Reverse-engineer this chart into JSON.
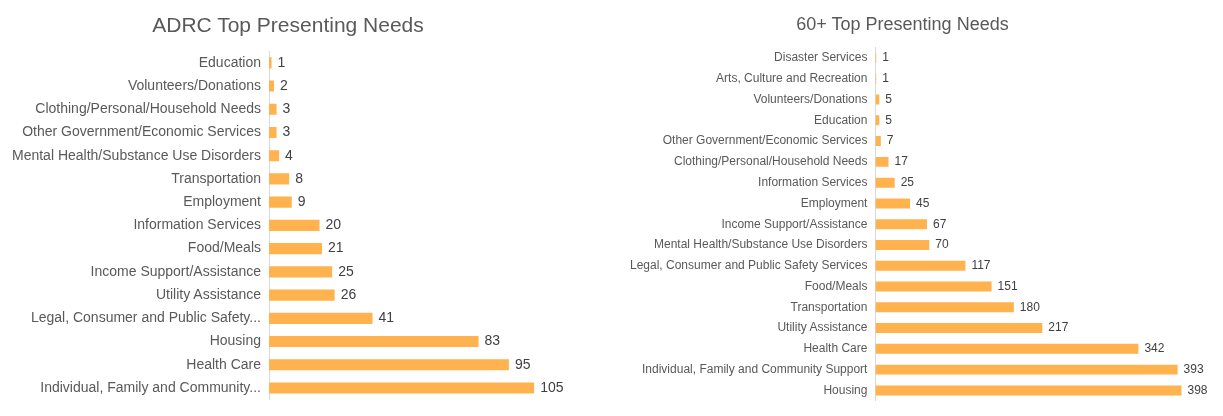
{
  "chart_data": [
    {
      "type": "bar",
      "orientation": "horizontal",
      "title": "ADRC Top Presenting Needs",
      "categories": [
        "Education",
        "Volunteers/Donations",
        "Clothing/Personal/Household Needs",
        "Other Government/Economic Services",
        "Mental Health/Substance Use Disorders",
        "Transportation",
        "Employment",
        "Information Services",
        "Food/Meals",
        "Income Support/Assistance",
        "Utility Assistance",
        "Legal, Consumer and Public Safety...",
        "Housing",
        "Health Care",
        "Individual, Family and Community..."
      ],
      "values": [
        1,
        2,
        3,
        3,
        4,
        8,
        9,
        20,
        21,
        25,
        26,
        41,
        83,
        95,
        105
      ],
      "color": "#ffb24e",
      "data_labels": true,
      "legend": false
    },
    {
      "type": "bar",
      "orientation": "horizontal",
      "title": "60+ Top Presenting Needs",
      "categories": [
        "Disaster Services",
        "Arts, Culture and Recreation",
        "Volunteers/Donations",
        "Education",
        "Other Government/Economic Services",
        "Clothing/Personal/Household Needs",
        "Information Services",
        "Employment",
        "Income Support/Assistance",
        "Mental Health/Substance Use Disorders",
        "Legal, Consumer and Public Safety Services",
        "Food/Meals",
        "Transportation",
        "Utility Assistance",
        "Health Care",
        "Individual, Family and Community Support",
        "Housing"
      ],
      "values": [
        1,
        1,
        5,
        5,
        7,
        17,
        25,
        45,
        67,
        70,
        117,
        151,
        180,
        217,
        342,
        393,
        398
      ],
      "color": "#ffb24e",
      "data_labels": true,
      "legend": false
    }
  ]
}
